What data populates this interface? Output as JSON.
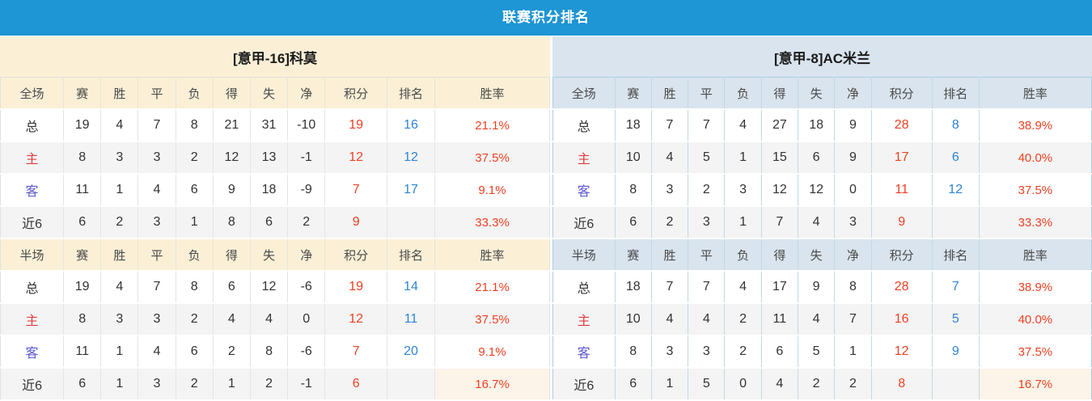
{
  "title": "联赛积分排名",
  "columns": {
    "full_label": "全场",
    "half_label": "半场",
    "stats": [
      "赛",
      "胜",
      "平",
      "负",
      "得",
      "失",
      "净"
    ],
    "points": "积分",
    "rank": "排名",
    "rate": "胜率"
  },
  "colors": {
    "title_bar_bg": "#1E95D4",
    "left_header_bg": "#FBF0D6",
    "right_header_bg": "#D9E4EE",
    "points_red": "#EE4023",
    "rank_blue": "#2F84D6",
    "home_red": "#E03E3E",
    "away_blue": "#5B57D1",
    "rate_highlight_bg": "#FCF4E8"
  },
  "teams": [
    {
      "name": "[意甲-16]科莫",
      "sections": [
        {
          "label": "全场",
          "rows": [
            {
              "label": "总",
              "label_style": "dark",
              "stats": [
                "19",
                "4",
                "7",
                "8",
                "21",
                "31",
                "-10"
              ],
              "points": "19",
              "rank": "16",
              "rate": "21.1%"
            },
            {
              "label": "主",
              "label_style": "red",
              "stats": [
                "8",
                "3",
                "3",
                "2",
                "12",
                "13",
                "-1"
              ],
              "points": "12",
              "rank": "12",
              "rate": "37.5%"
            },
            {
              "label": "客",
              "label_style": "blue",
              "stats": [
                "11",
                "1",
                "4",
                "6",
                "9",
                "18",
                "-9"
              ],
              "points": "7",
              "rank": "17",
              "rate": "9.1%"
            },
            {
              "label": "近6",
              "label_style": "dark",
              "stats": [
                "6",
                "2",
                "3",
                "1",
                "8",
                "6",
                "2"
              ],
              "points": "9",
              "rank": "",
              "rate": "33.3%"
            }
          ]
        },
        {
          "label": "半场",
          "rows": [
            {
              "label": "总",
              "label_style": "dark",
              "stats": [
                "19",
                "4",
                "7",
                "8",
                "6",
                "12",
                "-6"
              ],
              "points": "19",
              "rank": "14",
              "rate": "21.1%"
            },
            {
              "label": "主",
              "label_style": "red",
              "stats": [
                "8",
                "3",
                "3",
                "2",
                "4",
                "4",
                "0"
              ],
              "points": "12",
              "rank": "11",
              "rate": "37.5%"
            },
            {
              "label": "客",
              "label_style": "blue",
              "stats": [
                "11",
                "1",
                "4",
                "6",
                "2",
                "8",
                "-6"
              ],
              "points": "7",
              "rank": "20",
              "rate": "9.1%"
            },
            {
              "label": "近6",
              "label_style": "dark",
              "stats": [
                "6",
                "1",
                "3",
                "2",
                "1",
                "2",
                "-1"
              ],
              "points": "6",
              "rank": "",
              "rate": "16.7%",
              "rate_highlight": true
            }
          ]
        }
      ]
    },
    {
      "name": "[意甲-8]AC米兰",
      "sections": [
        {
          "label": "全场",
          "rows": [
            {
              "label": "总",
              "label_style": "dark",
              "stats": [
                "18",
                "7",
                "7",
                "4",
                "27",
                "18",
                "9"
              ],
              "points": "28",
              "rank": "8",
              "rate": "38.9%"
            },
            {
              "label": "主",
              "label_style": "red",
              "stats": [
                "10",
                "4",
                "5",
                "1",
                "15",
                "6",
                "9"
              ],
              "points": "17",
              "rank": "6",
              "rate": "40.0%"
            },
            {
              "label": "客",
              "label_style": "blue",
              "stats": [
                "8",
                "3",
                "2",
                "3",
                "12",
                "12",
                "0"
              ],
              "points": "11",
              "rank": "12",
              "rate": "37.5%"
            },
            {
              "label": "近6",
              "label_style": "dark",
              "stats": [
                "6",
                "2",
                "3",
                "1",
                "7",
                "4",
                "3"
              ],
              "points": "9",
              "rank": "",
              "rate": "33.3%"
            }
          ]
        },
        {
          "label": "半场",
          "rows": [
            {
              "label": "总",
              "label_style": "dark",
              "stats": [
                "18",
                "7",
                "7",
                "4",
                "17",
                "9",
                "8"
              ],
              "points": "28",
              "rank": "7",
              "rate": "38.9%"
            },
            {
              "label": "主",
              "label_style": "red",
              "stats": [
                "10",
                "4",
                "4",
                "2",
                "11",
                "4",
                "7"
              ],
              "points": "16",
              "rank": "5",
              "rate": "40.0%"
            },
            {
              "label": "客",
              "label_style": "blue",
              "stats": [
                "8",
                "3",
                "3",
                "2",
                "6",
                "5",
                "1"
              ],
              "points": "12",
              "rank": "9",
              "rate": "37.5%"
            },
            {
              "label": "近6",
              "label_style": "dark",
              "stats": [
                "6",
                "1",
                "5",
                "0",
                "4",
                "2",
                "2"
              ],
              "points": "8",
              "rank": "",
              "rate": "16.7%",
              "rate_highlight": true
            }
          ]
        }
      ]
    }
  ]
}
